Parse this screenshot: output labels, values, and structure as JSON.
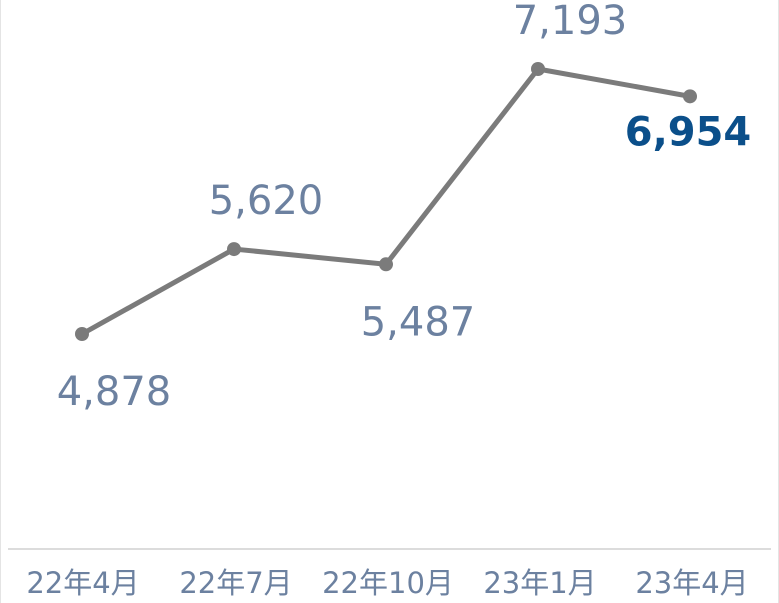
{
  "chart_data": {
    "type": "line",
    "categories": [
      "22年4月",
      "22年7月",
      "22年10月",
      "23年1月",
      "23年4月"
    ],
    "values": [
      4878,
      5620,
      5487,
      7193,
      6954
    ],
    "value_labels": [
      "4,878",
      "5,620",
      "5,487",
      "7,193",
      "6,954"
    ],
    "color": "#7b7b7b",
    "label_color": "#6c81a0",
    "highlight_color": "#0b4f8a"
  }
}
